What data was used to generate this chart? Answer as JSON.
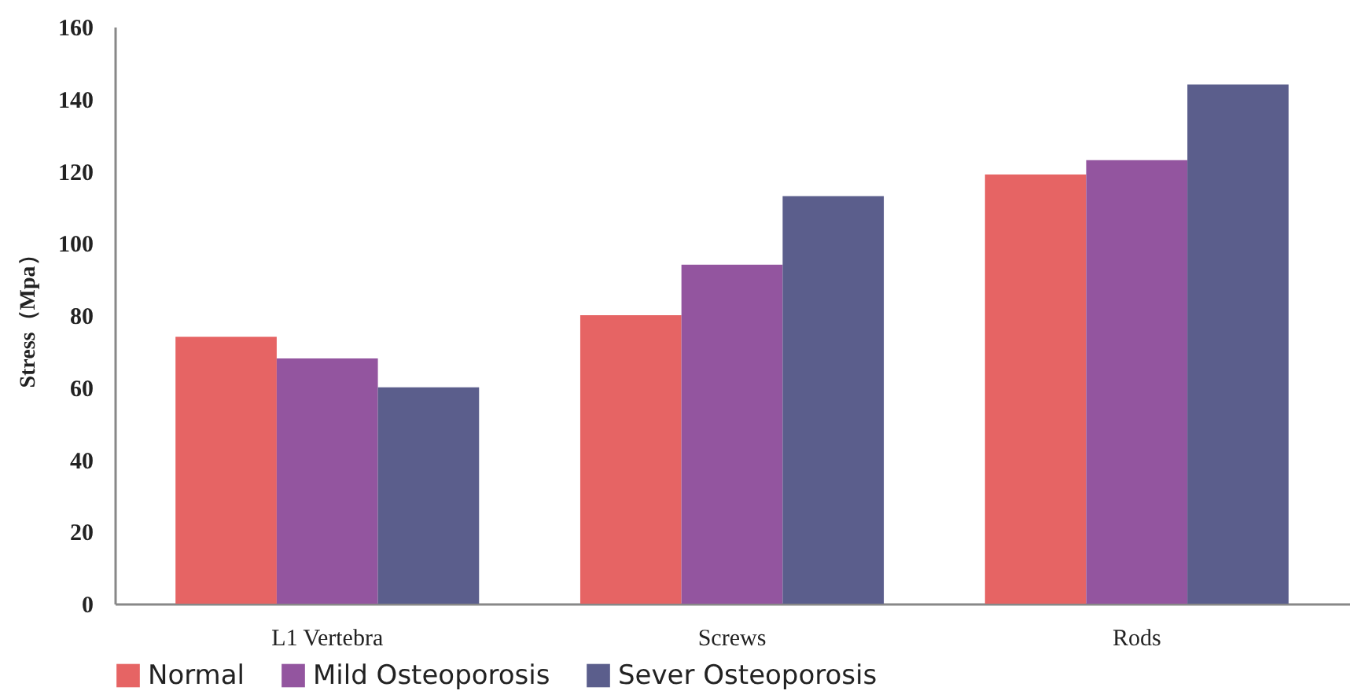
{
  "chart_data": {
    "type": "bar",
    "ylabel": "Stress（Mpa）",
    "categories": [
      "L1 Vertebra",
      "Screws",
      "Rods"
    ],
    "series": [
      {
        "name": "Normal",
        "color": "#e66464",
        "values": [
          74,
          80,
          119
        ]
      },
      {
        "name": "Mild Osteoporosis",
        "color": "#93559f",
        "values": [
          68,
          94,
          123
        ]
      },
      {
        "name": "Sever Osteoporosis",
        "color": "#5b5e8c",
        "values": [
          60,
          113,
          144
        ]
      }
    ],
    "ylim": [
      0,
      160
    ],
    "yticks": [
      0,
      20,
      40,
      60,
      80,
      100,
      120,
      140,
      160
    ],
    "grid": false,
    "legend": "bottom"
  }
}
